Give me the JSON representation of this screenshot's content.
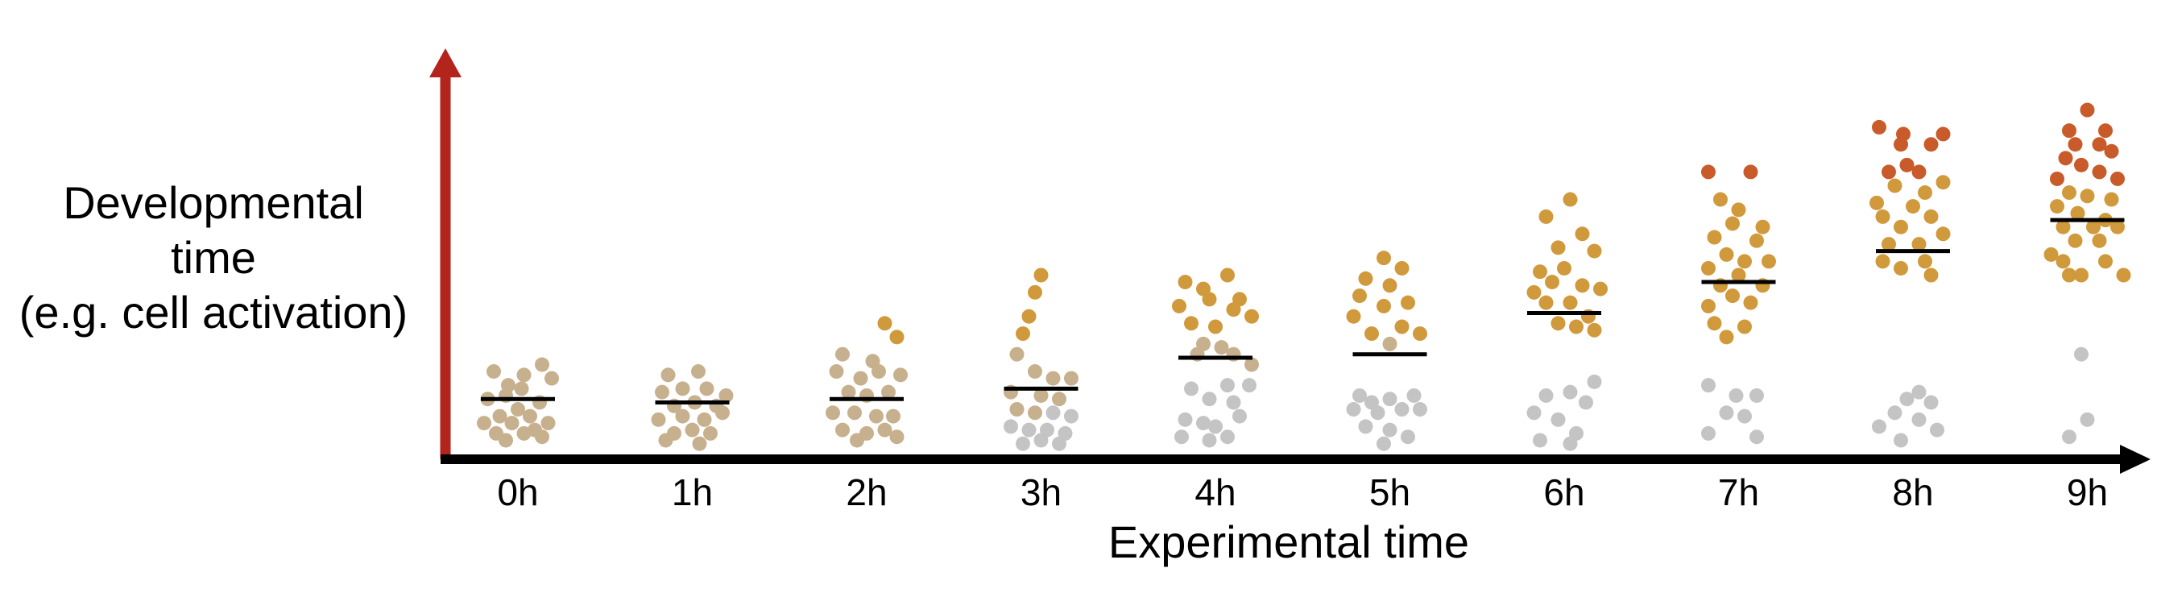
{
  "chart_data": {
    "type": "scatter",
    "title": "",
    "ylabel": [
      "Developmental",
      "time",
      "(e.g. cell activation)"
    ],
    "xlabel": "Experimental time",
    "categories": [
      "0h",
      "1h",
      "2h",
      "3h",
      "4h",
      "5h",
      "6h",
      "7h",
      "8h",
      "9h"
    ],
    "ylim": [
      0,
      100
    ],
    "grid": false,
    "legend": "none",
    "colors": {
      "y_axis": "#b3241d",
      "x_axis": "#000000",
      "inactive_points": "#c4c4c4",
      "early_points": "#c7b08e",
      "mid_points": "#d09a3c",
      "late_points": "#c95a2a",
      "median_line": "#000000"
    },
    "groups": [
      {
        "time": "0h",
        "median": 14,
        "active": [
          [
            -20,
            22
          ],
          [
            -8,
            18
          ],
          [
            5,
            21
          ],
          [
            20,
            24
          ],
          [
            -25,
            14
          ],
          [
            -10,
            15
          ],
          [
            3,
            17
          ],
          [
            18,
            13
          ],
          [
            28,
            20
          ],
          [
            -15,
            9
          ],
          [
            0,
            11
          ],
          [
            10,
            9
          ],
          [
            25,
            7
          ],
          [
            -28,
            7
          ],
          [
            -5,
            7
          ],
          [
            14,
            5
          ],
          [
            -18,
            4
          ],
          [
            5,
            4
          ],
          [
            20,
            3
          ],
          [
            -10,
            2
          ]
        ],
        "inactive": []
      },
      {
        "time": "1h",
        "median": 13,
        "active": [
          [
            -20,
            21
          ],
          [
            5,
            22
          ],
          [
            -25,
            16
          ],
          [
            -8,
            17
          ],
          [
            12,
            17
          ],
          [
            28,
            15
          ],
          [
            -15,
            12
          ],
          [
            2,
            13
          ],
          [
            20,
            12
          ],
          [
            -28,
            8
          ],
          [
            -8,
            9
          ],
          [
            10,
            8
          ],
          [
            25,
            10
          ],
          [
            -15,
            4
          ],
          [
            0,
            5
          ],
          [
            15,
            4
          ],
          [
            -22,
            2
          ],
          [
            6,
            1
          ]
        ],
        "inactive": []
      },
      {
        "time": "2h",
        "median": 14,
        "active": [
          [
            15,
            36
          ],
          [
            25,
            32
          ],
          [
            -20,
            27
          ],
          [
            5,
            25
          ],
          [
            -25,
            22
          ],
          [
            -5,
            20
          ],
          [
            10,
            22
          ],
          [
            28,
            21
          ],
          [
            -15,
            16
          ],
          [
            0,
            15
          ],
          [
            18,
            16
          ],
          [
            -28,
            10
          ],
          [
            -10,
            10
          ],
          [
            8,
            9
          ],
          [
            22,
            9
          ],
          [
            -20,
            5
          ],
          [
            0,
            4
          ],
          [
            15,
            5
          ],
          [
            -8,
            2
          ],
          [
            25,
            3
          ]
        ],
        "inactive": []
      },
      {
        "time": "3h",
        "median": 17,
        "active": [
          [
            0,
            50
          ],
          [
            -5,
            45
          ],
          [
            -10,
            38
          ],
          [
            -15,
            33
          ],
          [
            -20,
            27
          ],
          [
            -5,
            22
          ],
          [
            10,
            20
          ],
          [
            25,
            20
          ],
          [
            -25,
            16
          ],
          [
            0,
            15
          ],
          [
            15,
            14
          ],
          [
            -20,
            11
          ],
          [
            -5,
            10
          ]
        ],
        "inactive": [
          [
            10,
            10
          ],
          [
            25,
            9
          ],
          [
            -25,
            6
          ],
          [
            -10,
            5
          ],
          [
            5,
            5
          ],
          [
            20,
            4
          ],
          [
            -15,
            1
          ],
          [
            0,
            2
          ],
          [
            15,
            1
          ]
        ]
      },
      {
        "time": "4h",
        "median": 26,
        "active": [
          [
            -25,
            48
          ],
          [
            -10,
            46
          ],
          [
            10,
            50
          ],
          [
            20,
            43
          ],
          [
            -30,
            41
          ],
          [
            -5,
            43
          ],
          [
            15,
            40
          ],
          [
            30,
            38
          ],
          [
            -20,
            36
          ],
          [
            0,
            35
          ],
          [
            -10,
            30
          ],
          [
            5,
            29
          ],
          [
            -15,
            27
          ],
          [
            15,
            27
          ],
          [
            30,
            24
          ]
        ],
        "inactive": [
          [
            -20,
            17
          ],
          [
            10,
            18
          ],
          [
            28,
            18
          ],
          [
            -5,
            14
          ],
          [
            15,
            13
          ],
          [
            -25,
            8
          ],
          [
            -10,
            7
          ],
          [
            0,
            6
          ],
          [
            20,
            9
          ],
          [
            -28,
            3
          ],
          [
            -5,
            2
          ],
          [
            10,
            3
          ]
        ]
      },
      {
        "time": "5h",
        "median": 27,
        "active": [
          [
            -5,
            55
          ],
          [
            10,
            52
          ],
          [
            -20,
            49
          ],
          [
            0,
            47
          ],
          [
            -25,
            44
          ],
          [
            -5,
            41
          ],
          [
            15,
            42
          ],
          [
            -30,
            38
          ],
          [
            10,
            35
          ],
          [
            25,
            33
          ],
          [
            -15,
            33
          ],
          [
            0,
            30
          ]
        ],
        "inactive": [
          [
            -25,
            15
          ],
          [
            -15,
            13
          ],
          [
            0,
            14
          ],
          [
            20,
            15
          ],
          [
            -30,
            11
          ],
          [
            -10,
            10
          ],
          [
            10,
            11
          ],
          [
            25,
            11
          ],
          [
            -20,
            6
          ],
          [
            0,
            5
          ],
          [
            15,
            3
          ],
          [
            -5,
            1
          ]
        ]
      },
      {
        "time": "6h",
        "median": 39,
        "active": [
          [
            5,
            72
          ],
          [
            -15,
            67
          ],
          [
            15,
            62
          ],
          [
            -5,
            58
          ],
          [
            25,
            57
          ],
          [
            -20,
            51
          ],
          [
            0,
            52
          ],
          [
            -10,
            48
          ],
          [
            15,
            47
          ],
          [
            -25,
            45
          ],
          [
            30,
            46
          ],
          [
            5,
            42
          ],
          [
            -15,
            42
          ],
          [
            20,
            38
          ],
          [
            -5,
            36
          ],
          [
            10,
            35
          ],
          [
            25,
            34
          ]
        ],
        "inactive": [
          [
            25,
            19
          ],
          [
            5,
            16
          ],
          [
            -15,
            15
          ],
          [
            18,
            13
          ],
          [
            -25,
            10
          ],
          [
            -5,
            8
          ],
          [
            10,
            4
          ],
          [
            -20,
            2
          ],
          [
            5,
            1
          ]
        ]
      },
      {
        "time": "7h",
        "median": 48,
        "active": [
          [
            -25,
            80
          ],
          [
            10,
            80
          ],
          [
            -15,
            72
          ],
          [
            0,
            69
          ],
          [
            -5,
            65
          ],
          [
            20,
            64
          ],
          [
            -20,
            61
          ],
          [
            15,
            60
          ],
          [
            -10,
            56
          ],
          [
            5,
            54
          ],
          [
            25,
            54
          ],
          [
            -25,
            52
          ],
          [
            0,
            50
          ],
          [
            -15,
            47
          ],
          [
            20,
            47
          ],
          [
            -5,
            44
          ],
          [
            -25,
            41
          ],
          [
            10,
            42
          ],
          [
            -20,
            36
          ],
          [
            5,
            35
          ],
          [
            -10,
            32
          ]
        ],
        "inactive": [
          [
            -25,
            18
          ],
          [
            -2,
            15
          ],
          [
            15,
            15
          ],
          [
            -10,
            10
          ],
          [
            5,
            9
          ],
          [
            -25,
            4
          ],
          [
            15,
            3
          ]
        ]
      },
      {
        "time": "8h",
        "median": 57,
        "active": [
          [
            -28,
            93
          ],
          [
            -8,
            91
          ],
          [
            25,
            91
          ],
          [
            -10,
            88
          ],
          [
            15,
            88
          ],
          [
            -5,
            82
          ],
          [
            -20,
            80
          ],
          [
            5,
            80
          ],
          [
            25,
            77
          ],
          [
            -15,
            76
          ],
          [
            10,
            74
          ],
          [
            -30,
            71
          ],
          [
            0,
            70
          ],
          [
            -25,
            67
          ],
          [
            15,
            67
          ],
          [
            -10,
            64
          ],
          [
            25,
            62
          ],
          [
            -20,
            59
          ],
          [
            5,
            59
          ],
          [
            -25,
            54
          ],
          [
            10,
            54
          ],
          [
            -10,
            52
          ],
          [
            15,
            50
          ]
        ],
        "inactive": [
          [
            5,
            16
          ],
          [
            -5,
            14
          ],
          [
            15,
            13
          ],
          [
            -15,
            10
          ],
          [
            5,
            8
          ],
          [
            -28,
            6
          ],
          [
            20,
            5
          ],
          [
            -10,
            2
          ]
        ]
      },
      {
        "time": "9h",
        "median": 66,
        "active": [
          [
            0,
            98
          ],
          [
            -15,
            92
          ],
          [
            15,
            92
          ],
          [
            -10,
            88
          ],
          [
            10,
            88
          ],
          [
            20,
            86
          ],
          [
            -18,
            84
          ],
          [
            -5,
            82
          ],
          [
            10,
            80
          ],
          [
            -25,
            78
          ],
          [
            25,
            78
          ],
          [
            -15,
            74
          ],
          [
            0,
            73
          ],
          [
            20,
            72
          ],
          [
            -25,
            70
          ],
          [
            -8,
            68
          ],
          [
            15,
            66
          ],
          [
            -20,
            64
          ],
          [
            5,
            64
          ],
          [
            25,
            64
          ],
          [
            -10,
            60
          ],
          [
            10,
            60
          ],
          [
            -30,
            56
          ],
          [
            -20,
            54
          ],
          [
            15,
            54
          ],
          [
            -5,
            50
          ],
          [
            -15,
            50
          ],
          [
            30,
            50
          ]
        ],
        "inactive": [
          [
            -5,
            27
          ],
          [
            0,
            8
          ],
          [
            -15,
            3
          ]
        ]
      }
    ]
  }
}
